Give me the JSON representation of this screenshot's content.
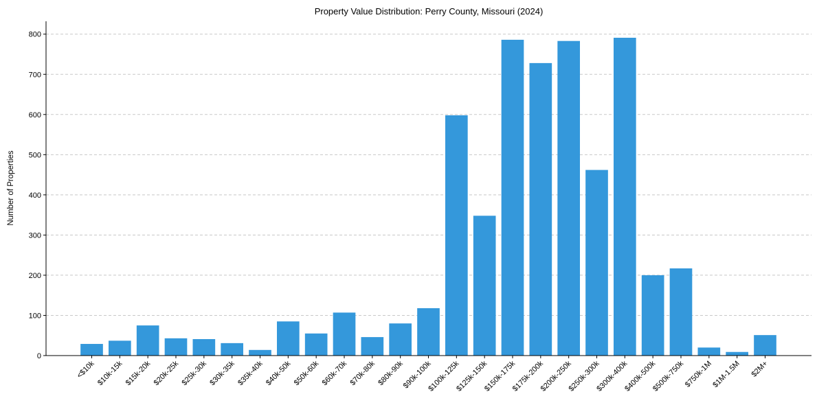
{
  "chart_data": {
    "type": "bar",
    "title": "Property Value Distribution: Perry County, Missouri (2024)",
    "xlabel": "",
    "ylabel": "Number of Properties",
    "categories": [
      "<$10k",
      "$10k-15k",
      "$15k-20k",
      "$20k-25k",
      "$25k-30k",
      "$30k-35k",
      "$35k-40k",
      "$40k-50k",
      "$50k-60k",
      "$60k-70k",
      "$70k-80k",
      "$80k-90k",
      "$90k-100k",
      "$100k-125k",
      "$125k-150k",
      "$150k-175k",
      "$175k-200k",
      "$200k-250k",
      "$250k-300k",
      "$300k-400k",
      "$400k-500k",
      "$500k-750k",
      "$750k-1M",
      "$1M-1.5M",
      "$2M+"
    ],
    "values": [
      29,
      37,
      75,
      43,
      41,
      31,
      14,
      85,
      55,
      107,
      46,
      80,
      118,
      598,
      348,
      786,
      728,
      783,
      462,
      791,
      200,
      217,
      20,
      9,
      51
    ],
    "ylim": [
      0,
      832
    ],
    "yticks": [
      0,
      100,
      200,
      300,
      400,
      500,
      600,
      700,
      800
    ],
    "grid": true,
    "bar_color": "#3498db"
  }
}
